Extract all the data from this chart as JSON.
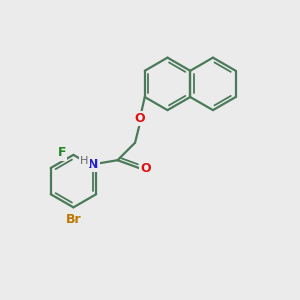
{
  "background_color": "#ebebeb",
  "bond_color": "#4a7a5a",
  "atom_colors": {
    "O": "#dd1111",
    "N": "#2222cc",
    "F": "#228822",
    "Br": "#bb7700",
    "H": "#666666",
    "C": "#4a7a5a"
  },
  "figsize": [
    3.0,
    3.0
  ],
  "dpi": 100
}
